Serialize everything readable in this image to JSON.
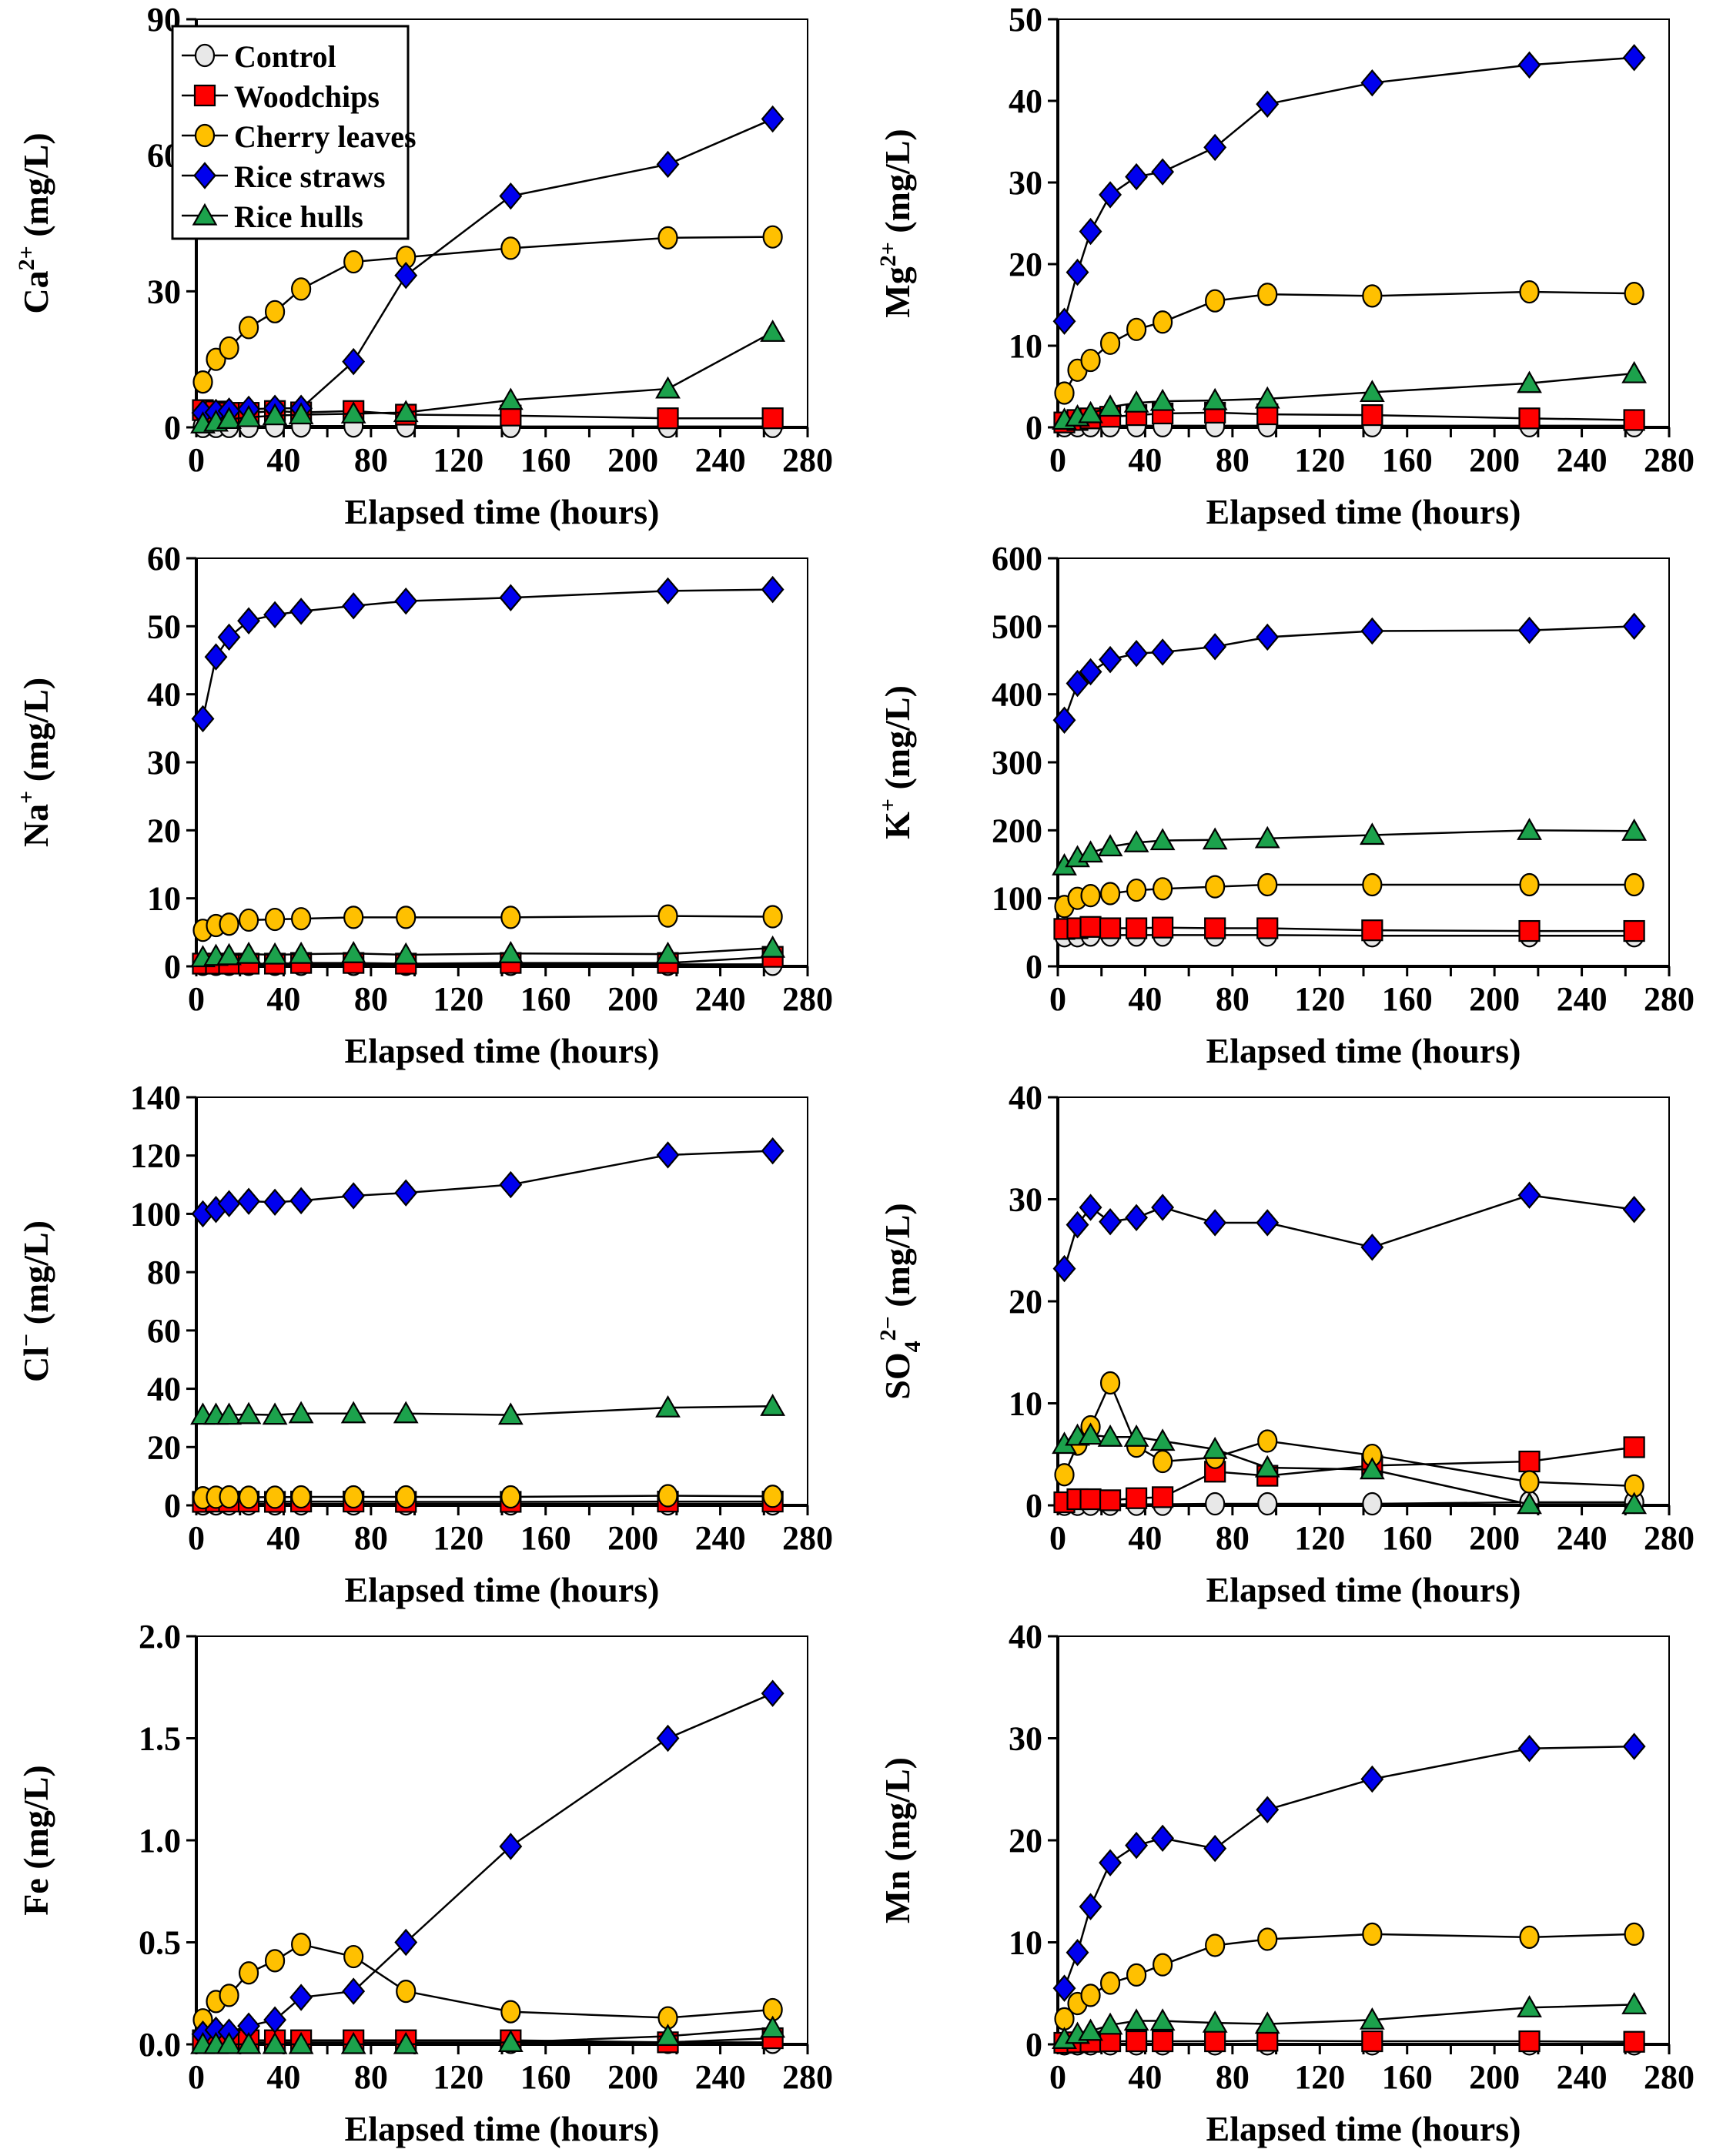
{
  "figure": {
    "background": "#ffffff",
    "line_color": "#000000",
    "axis_color": "#000000",
    "series_meta": [
      {
        "name": "Control",
        "marker": "circle",
        "fill": "#e8e8e8"
      },
      {
        "name": "Woodchips",
        "marker": "square",
        "fill": "#fe0000"
      },
      {
        "name": "Cherry leaves",
        "marker": "circle",
        "fill": "#ffc000"
      },
      {
        "name": "Rice straws",
        "marker": "diamond",
        "fill": "#0000ee"
      },
      {
        "name": "Rice hulls",
        "marker": "triangle",
        "fill": "#1ca24c"
      }
    ],
    "x_axis": {
      "label": "Elapsed time (hours)",
      "min": 0,
      "max": 280,
      "major_ticks": [
        0,
        40,
        80,
        120,
        160,
        200,
        240,
        280
      ],
      "minor_ticks": [
        20,
        60,
        100,
        140,
        180,
        220,
        260
      ],
      "values": [
        3,
        9,
        15,
        24,
        36,
        48,
        72,
        96,
        144,
        216,
        264
      ]
    }
  },
  "chart_data": [
    {
      "id": "ca",
      "type": "line",
      "show_legend": true,
      "ylabel": [
        {
          "t": "Ca"
        },
        {
          "t": "2+",
          "s": "sup"
        },
        {
          "t": " (mg/L)"
        }
      ],
      "xlabel": "Elapsed time (hours)",
      "ylim": [
        0,
        90
      ],
      "yticks": [
        0,
        30,
        60,
        90
      ],
      "ydecimals": 0,
      "series": [
        {
          "name": "Control",
          "values": [
            0.2,
            0.2,
            0.2,
            0.2,
            0.3,
            0.3,
            0.3,
            0.3,
            0.2,
            0.2,
            0.2
          ]
        },
        {
          "name": "Woodchips",
          "values": [
            3.8,
            3.5,
            3.2,
            3.2,
            3.6,
            3.3,
            3.6,
            2.8,
            2.6,
            2.0,
            2.0
          ]
        },
        {
          "name": "Cherry leaves",
          "values": [
            10,
            15,
            17.5,
            22,
            25.5,
            30.5,
            36.5,
            37.5,
            39.5,
            41.8,
            42
          ]
        },
        {
          "name": "Rice straws",
          "values": [
            3.2,
            3.3,
            3.6,
            4.0,
            4.2,
            4.2,
            14.5,
            33.5,
            51,
            58,
            68
          ]
        },
        {
          "name": "Rice hulls",
          "values": [
            0.8,
            1.2,
            1.8,
            2.2,
            2.6,
            2.8,
            3.0,
            3.3,
            6.0,
            8.5,
            21
          ]
        }
      ]
    },
    {
      "id": "mg",
      "type": "line",
      "show_legend": false,
      "ylabel": [
        {
          "t": "Mg"
        },
        {
          "t": "2+",
          "s": "sup"
        },
        {
          "t": " (mg/L)"
        }
      ],
      "xlabel": "Elapsed time (hours)",
      "ylim": [
        0,
        50
      ],
      "yticks": [
        0,
        10,
        20,
        30,
        40,
        50
      ],
      "ydecimals": 0,
      "series": [
        {
          "name": "Control",
          "values": [
            0.2,
            0.2,
            0.2,
            0.2,
            0.2,
            0.2,
            0.2,
            0.2,
            0.2,
            0.2,
            0.2
          ]
        },
        {
          "name": "Woodchips",
          "values": [
            0.6,
            0.9,
            1.1,
            1.3,
            1.5,
            1.7,
            1.8,
            1.6,
            1.5,
            1.1,
            0.9
          ]
        },
        {
          "name": "Cherry leaves",
          "values": [
            4.2,
            7.0,
            8.2,
            10.3,
            12.0,
            12.9,
            15.5,
            16.3,
            16.1,
            16.6,
            16.4
          ]
        },
        {
          "name": "Rice straws",
          "values": [
            13,
            19,
            24,
            28.5,
            30.7,
            31.3,
            34.3,
            39.6,
            42.2,
            44.4,
            45.3
          ]
        },
        {
          "name": "Rice hulls",
          "values": [
            0.9,
            1.3,
            1.7,
            2.5,
            3.0,
            3.2,
            3.3,
            3.5,
            4.3,
            5.4,
            6.6
          ]
        }
      ]
    },
    {
      "id": "na",
      "type": "line",
      "show_legend": false,
      "ylabel": [
        {
          "t": "Na"
        },
        {
          "t": "+",
          "s": "sup"
        },
        {
          "t": " (mg/L)"
        }
      ],
      "xlabel": "Elapsed time (hours)",
      "ylim": [
        0,
        60
      ],
      "yticks": [
        0,
        10,
        20,
        30,
        40,
        50,
        60
      ],
      "ydecimals": 0,
      "series": [
        {
          "name": "Control",
          "values": [
            0.3,
            0.3,
            0.3,
            0.3,
            0.3,
            0.3,
            0.3,
            0.3,
            0.3,
            0.3,
            0.3
          ]
        },
        {
          "name": "Woodchips",
          "values": [
            0.4,
            0.4,
            0.4,
            0.4,
            0.4,
            0.5,
            0.5,
            0.4,
            0.5,
            0.5,
            1.4
          ]
        },
        {
          "name": "Cherry leaves",
          "values": [
            5.3,
            6.0,
            6.2,
            6.8,
            6.9,
            7.0,
            7.2,
            7.2,
            7.2,
            7.4,
            7.3
          ]
        },
        {
          "name": "Rice straws",
          "values": [
            36.4,
            45.5,
            48.4,
            50.8,
            51.7,
            52.2,
            53.0,
            53.7,
            54.2,
            55.2,
            55.4
          ]
        },
        {
          "name": "Rice hulls",
          "values": [
            1.3,
            1.5,
            1.6,
            1.8,
            1.7,
            1.8,
            1.9,
            1.7,
            1.9,
            1.8,
            2.7
          ]
        }
      ]
    },
    {
      "id": "k",
      "type": "line",
      "show_legend": false,
      "ylabel": [
        {
          "t": "K"
        },
        {
          "t": "+",
          "s": "sup"
        },
        {
          "t": " (mg/L)"
        }
      ],
      "xlabel": "Elapsed time (hours)",
      "ylim": [
        0,
        600
      ],
      "yticks": [
        0,
        100,
        200,
        300,
        400,
        500,
        600
      ],
      "ydecimals": 0,
      "series": [
        {
          "name": "Control",
          "values": [
            45,
            45,
            46,
            46,
            46,
            46,
            46,
            46,
            45,
            45,
            45
          ]
        },
        {
          "name": "Woodchips",
          "values": [
            55,
            56,
            58,
            56,
            56,
            57,
            56,
            56,
            53,
            52,
            52
          ]
        },
        {
          "name": "Cherry leaves",
          "values": [
            88,
            100,
            104,
            107,
            112,
            114,
            117,
            120,
            120,
            120,
            120
          ]
        },
        {
          "name": "Rice straws",
          "values": [
            362,
            416,
            433,
            451,
            460,
            462,
            470,
            484,
            493,
            494,
            500
          ]
        },
        {
          "name": "Rice hulls",
          "values": [
            148,
            160,
            167,
            176,
            182,
            185,
            186,
            188,
            193,
            200,
            199
          ]
        }
      ]
    },
    {
      "id": "cl",
      "type": "line",
      "show_legend": false,
      "ylabel": [
        {
          "t": "Cl"
        },
        {
          "t": "−",
          "s": "sup"
        },
        {
          "t": " (mg/L)"
        }
      ],
      "xlabel": "Elapsed time (hours)",
      "ylim": [
        0,
        140
      ],
      "yticks": [
        0,
        20,
        40,
        60,
        80,
        100,
        120,
        140
      ],
      "ydecimals": 0,
      "series": [
        {
          "name": "Control",
          "values": [
            0.5,
            0.5,
            0.5,
            0.5,
            0.5,
            0.5,
            0.5,
            0.5,
            0.5,
            0.5,
            0.5
          ]
        },
        {
          "name": "Woodchips",
          "values": [
            1.2,
            1.3,
            1.3,
            1.3,
            1.2,
            1.3,
            1.3,
            1.2,
            1.2,
            1.3,
            1.3
          ]
        },
        {
          "name": "Cherry leaves",
          "values": [
            2.6,
            2.8,
            2.9,
            2.8,
            2.8,
            2.9,
            2.9,
            2.9,
            2.9,
            3.3,
            3.1
          ]
        },
        {
          "name": "Rice straws",
          "values": [
            100,
            101.5,
            103.5,
            104.3,
            104,
            104.5,
            106.2,
            107.2,
            110,
            120.2,
            121.6
          ]
        },
        {
          "name": "Rice hulls",
          "values": [
            31,
            31,
            31,
            31.2,
            31,
            31.5,
            31.5,
            31.5,
            31,
            33.5,
            34
          ]
        }
      ]
    },
    {
      "id": "so4",
      "type": "line",
      "show_legend": false,
      "ylabel": [
        {
          "t": "SO"
        },
        {
          "t": "4",
          "s": "sub"
        },
        {
          "t": "2−",
          "s": "sup"
        },
        {
          "t": " (mg/L)"
        }
      ],
      "xlabel": "Elapsed time (hours)",
      "ylim": [
        0,
        40
      ],
      "yticks": [
        0,
        10,
        20,
        30,
        40
      ],
      "ydecimals": 0,
      "series": [
        {
          "name": "Control",
          "values": [
            0.1,
            0.1,
            0.1,
            0.1,
            0.1,
            0.1,
            0.15,
            0.15,
            0.15,
            0.3,
            0.3
          ]
        },
        {
          "name": "Woodchips",
          "values": [
            0.3,
            0.6,
            0.6,
            0.5,
            0.7,
            0.8,
            3.3,
            2.9,
            3.9,
            4.3,
            5.7
          ]
        },
        {
          "name": "Cherry leaves",
          "values": [
            3.0,
            6.0,
            7.7,
            12.0,
            5.8,
            4.3,
            4.7,
            6.3,
            4.9,
            2.3,
            1.9
          ]
        },
        {
          "name": "Rice straws",
          "values": [
            23.2,
            27.5,
            29.2,
            27.8,
            28.2,
            29.2,
            27.7,
            27.7,
            25.3,
            30.4,
            29.0
          ]
        },
        {
          "name": "Rice hulls",
          "values": [
            6.0,
            6.8,
            6.9,
            6.7,
            6.7,
            6.3,
            5.5,
            3.7,
            3.5,
            0.1,
            0.1
          ]
        }
      ]
    },
    {
      "id": "fe",
      "type": "line",
      "show_legend": false,
      "ylabel": [
        {
          "t": "Fe (mg/L)"
        }
      ],
      "xlabel": "Elapsed time (hours)",
      "ylim": [
        0,
        2
      ],
      "yticks": [
        0,
        0.5,
        1,
        1.5,
        2
      ],
      "ydecimals": 1,
      "series": [
        {
          "name": "Control",
          "values": [
            0.01,
            0.01,
            0.01,
            0.01,
            0.01,
            0.01,
            0.01,
            0.01,
            0.01,
            0.01,
            0.01
          ]
        },
        {
          "name": "Woodchips",
          "values": [
            0.02,
            0.02,
            0.02,
            0.02,
            0.02,
            0.02,
            0.02,
            0.02,
            0.02,
            0.01,
            0.03
          ]
        },
        {
          "name": "Cherry leaves",
          "values": [
            0.12,
            0.21,
            0.24,
            0.35,
            0.41,
            0.49,
            0.43,
            0.26,
            0.16,
            0.13,
            0.17
          ]
        },
        {
          "name": "Rice straws",
          "values": [
            0.05,
            0.07,
            0.06,
            0.09,
            0.12,
            0.23,
            0.26,
            0.5,
            0.97,
            1.5,
            1.72
          ]
        },
        {
          "name": "Rice hulls",
          "values": [
            0.0,
            0.0,
            0.0,
            0.0,
            0.0,
            0.0,
            0.0,
            0.0,
            0.01,
            0.04,
            0.08
          ]
        }
      ]
    },
    {
      "id": "mn",
      "type": "line",
      "show_legend": false,
      "ylabel": [
        {
          "t": "Mn (mg/L)"
        }
      ],
      "xlabel": "Elapsed time (hours)",
      "ylim": [
        0,
        40
      ],
      "yticks": [
        0,
        10,
        20,
        30,
        40
      ],
      "ydecimals": 0,
      "series": [
        {
          "name": "Control",
          "values": [
            0.05,
            0.05,
            0.05,
            0.05,
            0.05,
            0.05,
            0.05,
            0.05,
            0.05,
            0.05,
            0.05
          ]
        },
        {
          "name": "Woodchips",
          "values": [
            0.15,
            0.2,
            0.25,
            0.3,
            0.3,
            0.3,
            0.3,
            0.35,
            0.3,
            0.3,
            0.25
          ]
        },
        {
          "name": "Cherry leaves",
          "values": [
            2.5,
            4.0,
            4.8,
            6.0,
            6.8,
            7.8,
            9.7,
            10.3,
            10.8,
            10.5,
            10.8
          ]
        },
        {
          "name": "Rice straws",
          "values": [
            5.5,
            9.0,
            13.5,
            17.8,
            19.5,
            20.2,
            19.2,
            23.0,
            26.0,
            29.0,
            29.2
          ]
        },
        {
          "name": "Rice hulls",
          "values": [
            0.5,
            1.0,
            1.3,
            1.9,
            2.3,
            2.3,
            2.1,
            2.0,
            2.4,
            3.6,
            3.9
          ]
        }
      ]
    }
  ]
}
